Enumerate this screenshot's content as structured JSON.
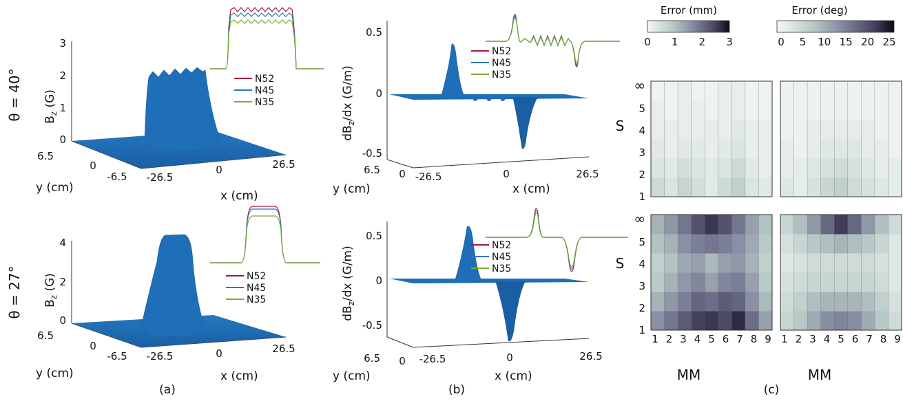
{
  "colors": {
    "surface": "#1f6fb8",
    "surface_dark": "#165a99",
    "n52": "#a3163b",
    "n45": "#2a78b8",
    "n35": "#77ac30"
  },
  "rows": [
    {
      "theta": "θ = 40°",
      "bz_ticks": [
        "3",
        "2",
        "1",
        "0"
      ],
      "dbz_ticks": [
        "0.5",
        "0",
        "-0.5"
      ]
    },
    {
      "theta": "θ = 27°",
      "bz_ticks": [
        "4",
        "2",
        "0"
      ],
      "dbz_ticks": [
        "0.5",
        "0",
        "-0.5"
      ]
    }
  ],
  "panel_a": {
    "zlabel_main": "B",
    "zlabel_sub": "z",
    "zlabel_unit": " (G)",
    "ylabel": "y (cm)",
    "xlabel": "x (cm)",
    "y_ticks": [
      "6.5",
      "0",
      "-6.5"
    ],
    "x_ticks": [
      "-26.5",
      "0",
      "26.5"
    ],
    "caption": "(a)"
  },
  "panel_b": {
    "zlabel": "dB",
    "zlabel_sub": "z",
    "zlabel_unit": "/dx (G/m)",
    "ylabel": "y (cm)",
    "xlabel": "x (cm)",
    "y_ticks": [
      "6.5",
      "0"
    ],
    "x_ticks": [
      "-26.5",
      "0",
      "26.5"
    ],
    "caption": "(b)"
  },
  "legend": [
    "N52",
    "N45",
    "N35"
  ],
  "panel_c": {
    "caption": "(c)",
    "colorbar_mm_title": "Error (mm)",
    "colorbar_mm_ticks": [
      "0",
      "1",
      "2",
      "3"
    ],
    "colorbar_deg_title": "Error (deg)",
    "colorbar_deg_ticks": [
      "0",
      "5",
      "10",
      "15",
      "20",
      "25"
    ],
    "ylabel": "S",
    "xlabel": "MM",
    "y_ticks": [
      "∞",
      "5",
      "4",
      "3",
      "2",
      "1"
    ],
    "x_ticks": [
      "1",
      "2",
      "3",
      "4",
      "5",
      "6",
      "7",
      "8",
      "9"
    ]
  },
  "chart_data": [
    {
      "type": "surface",
      "title": "",
      "row": "θ = 40°",
      "zlabel": "Bz (G)",
      "xlabel": "x (cm)",
      "ylabel": "y (cm)",
      "xlim": [
        -26.5,
        26.5
      ],
      "ylim": [
        -6.5,
        6.5
      ],
      "zlim": [
        0,
        3
      ],
      "x": [
        -26.5,
        -20,
        -16,
        -14,
        -12,
        -10,
        -8,
        -6,
        -4,
        -2,
        0,
        4,
        10,
        20,
        26.5
      ],
      "z": [
        0,
        0.05,
        0.6,
        1.9,
        2.05,
        2.1,
        2.05,
        2.1,
        2.05,
        2.1,
        2.0,
        0.1,
        0,
        0,
        0
      ]
    },
    {
      "type": "line",
      "title": "",
      "row": "θ = 40° inset",
      "series": [
        {
          "name": "N52",
          "peak": 1.0
        },
        {
          "name": "N45",
          "peak": 0.9
        },
        {
          "name": "N35",
          "peak": 0.78
        }
      ]
    },
    {
      "type": "surface",
      "title": "",
      "row": "θ = 40°",
      "zlabel": "dBz/dx (G/m)",
      "xlim": [
        -26.5,
        26.5
      ],
      "zlim": [
        -0.5,
        0.5
      ],
      "x": [
        -26.5,
        -20,
        -16,
        -14,
        -12,
        -8,
        -4,
        0,
        2,
        4,
        6,
        10,
        26.5
      ],
      "z": [
        0,
        0,
        0.4,
        0.1,
        -0.05,
        0.03,
        -0.03,
        0.02,
        -0.2,
        -0.45,
        -0.05,
        0,
        0
      ]
    },
    {
      "type": "line",
      "title": "",
      "row": "θ = 40° derivative inset",
      "series": [
        {
          "name": "N52"
        },
        {
          "name": "N45"
        },
        {
          "name": "N35"
        }
      ]
    },
    {
      "type": "surface",
      "title": "",
      "row": "θ = 27°",
      "zlabel": "Bz (G)",
      "xlim": [
        -26.5,
        26.5
      ],
      "ylim": [
        -6.5,
        6.5
      ],
      "zlim": [
        0,
        4
      ],
      "x": [
        -26.5,
        -15,
        -10,
        -6,
        -4,
        -2,
        2,
        4,
        8,
        26.5
      ],
      "z": [
        0,
        0,
        0.3,
        2.5,
        3.6,
        3.65,
        3.6,
        0.8,
        0.05,
        0
      ]
    },
    {
      "type": "line",
      "title": "",
      "row": "θ = 27° inset",
      "series": [
        {
          "name": "N52",
          "peak": 1.0
        },
        {
          "name": "N45",
          "peak": 0.92
        },
        {
          "name": "N35",
          "peak": 0.82
        }
      ]
    },
    {
      "type": "surface",
      "title": "",
      "row": "θ = 27°",
      "zlabel": "dBz/dx (G/m)",
      "xlim": [
        -26.5,
        26.5
      ],
      "zlim": [
        -0.5,
        0.5
      ],
      "x": [
        -26.5,
        -12,
        -8,
        -5,
        -2,
        0,
        2,
        4,
        26.5
      ],
      "z": [
        0,
        0,
        0.2,
        0.55,
        0.05,
        -0.2,
        -0.6,
        -0.05,
        0
      ]
    },
    {
      "type": "heatmap",
      "title": "Error (mm)",
      "row": "top",
      "xlabel": "MM",
      "ylabel": "S",
      "colorbar_range": [
        0,
        3
      ],
      "x": [
        1,
        2,
        3,
        4,
        5,
        6,
        7,
        8,
        9
      ],
      "y": [
        "1",
        "2",
        "3",
        "4",
        "5",
        "∞"
      ],
      "values": [
        [
          0.6,
          0.4,
          0.7,
          0.5,
          0.3,
          0.6,
          0.8,
          0.4,
          0.3
        ],
        [
          0.4,
          0.3,
          0.5,
          0.4,
          0.3,
          0.4,
          0.6,
          0.3,
          0.2
        ],
        [
          0.3,
          0.2,
          0.3,
          0.3,
          0.2,
          0.3,
          0.4,
          0.2,
          0.2
        ],
        [
          0.2,
          0.2,
          0.2,
          0.2,
          0.2,
          0.2,
          0.3,
          0.2,
          0.2
        ],
        [
          0.2,
          0.1,
          0.2,
          0.2,
          0.1,
          0.2,
          0.2,
          0.1,
          0.1
        ],
        [
          0.1,
          0.1,
          0.2,
          0.1,
          0.1,
          0.2,
          0.2,
          0.1,
          0.1
        ]
      ]
    },
    {
      "type": "heatmap",
      "title": "Error (deg)",
      "row": "top",
      "xlabel": "MM",
      "colorbar_range": [
        0,
        26
      ],
      "x": [
        1,
        2,
        3,
        4,
        5,
        6,
        7,
        8,
        9
      ],
      "y": [
        "1",
        "2",
        "3",
        "4",
        "5",
        "∞"
      ],
      "values": [
        [
          3,
          2,
          4,
          6,
          7,
          5,
          4,
          3,
          2
        ],
        [
          2,
          2,
          3,
          4,
          5,
          4,
          3,
          2,
          2
        ],
        [
          2,
          1,
          2,
          3,
          3,
          3,
          2,
          2,
          1
        ],
        [
          1,
          1,
          2,
          2,
          2,
          2,
          2,
          1,
          1
        ],
        [
          1,
          1,
          1,
          1,
          1,
          1,
          1,
          1,
          1
        ],
        [
          1,
          1,
          1,
          1,
          1,
          1,
          1,
          1,
          1
        ]
      ]
    },
    {
      "type": "heatmap",
      "title": "Error (mm)",
      "row": "bottom",
      "xlabel": "MM",
      "ylabel": "S",
      "colorbar_range": [
        0,
        3
      ],
      "x": [
        1,
        2,
        3,
        4,
        5,
        6,
        7,
        8,
        9
      ],
      "y": [
        "1",
        "2",
        "3",
        "4",
        "5",
        "∞"
      ],
      "values": [
        [
          1.6,
          1.9,
          2.2,
          2.5,
          2.6,
          2.4,
          2.7,
          2.0,
          1.4
        ],
        [
          1.2,
          1.5,
          1.8,
          2.1,
          2.0,
          2.2,
          2.1,
          1.6,
          1.1
        ],
        [
          0.9,
          1.2,
          1.5,
          1.7,
          1.4,
          1.7,
          1.8,
          1.4,
          0.9
        ],
        [
          0.8,
          1.0,
          1.3,
          1.4,
          1.1,
          1.4,
          1.5,
          1.2,
          0.8
        ],
        [
          1.0,
          1.2,
          1.6,
          1.8,
          1.9,
          1.8,
          1.6,
          1.3,
          0.9
        ],
        [
          1.2,
          1.5,
          1.9,
          2.3,
          2.6,
          2.3,
          1.9,
          1.4,
          1.0
        ]
      ]
    },
    {
      "type": "heatmap",
      "title": "Error (deg)",
      "row": "bottom",
      "xlabel": "MM",
      "colorbar_range": [
        0,
        26
      ],
      "x": [
        1,
        2,
        3,
        4,
        5,
        6,
        7,
        8,
        9
      ],
      "y": [
        "1",
        "2",
        "3",
        "4",
        "5",
        "∞"
      ],
      "values": [
        [
          6,
          8,
          11,
          14,
          15,
          14,
          11,
          8,
          5
        ],
        [
          5,
          7,
          9,
          10,
          10,
          10,
          9,
          7,
          4
        ],
        [
          4,
          5,
          6,
          6,
          6,
          6,
          6,
          5,
          3
        ],
        [
          3,
          4,
          5,
          5,
          5,
          5,
          5,
          4,
          3
        ],
        [
          4,
          6,
          8,
          9,
          10,
          9,
          8,
          6,
          3
        ],
        [
          6,
          9,
          13,
          18,
          22,
          18,
          13,
          9,
          5
        ]
      ]
    }
  ]
}
